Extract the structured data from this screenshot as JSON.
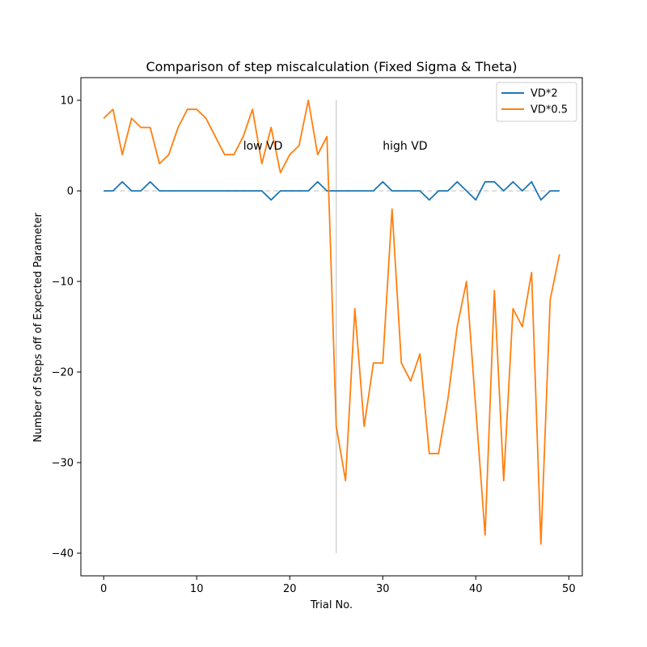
{
  "chart_data": {
    "type": "line",
    "title": "Comparison of step miscalculation (Fixed Sigma & Theta)",
    "xlabel": "Trial No.",
    "ylabel": "Number of Steps off of Expected Parameter",
    "xlim": [
      -2.45,
      51.45
    ],
    "ylim": [
      -42.5,
      12.5
    ],
    "xticks": [
      0,
      10,
      20,
      30,
      40,
      50
    ],
    "yticks": [
      10,
      0,
      -10,
      -20,
      -30,
      -40
    ],
    "ytick_labels": [
      "10",
      "0",
      "−10",
      "−20",
      "−30",
      "−40"
    ],
    "series": [
      {
        "name": "VD*2",
        "color": "#1f77b4",
        "x": [
          0,
          1,
          2,
          3,
          4,
          5,
          6,
          7,
          8,
          9,
          10,
          11,
          12,
          13,
          14,
          15,
          16,
          17,
          18,
          19,
          20,
          21,
          22,
          23,
          24,
          25,
          26,
          27,
          28,
          29,
          30,
          31,
          32,
          33,
          34,
          35,
          36,
          37,
          38,
          39,
          40,
          41,
          42,
          43,
          44,
          45,
          46,
          47,
          48,
          49
        ],
        "values": [
          0,
          0,
          1,
          0,
          0,
          1,
          0,
          0,
          0,
          0,
          0,
          0,
          0,
          0,
          0,
          0,
          0,
          0,
          -1,
          0,
          0,
          0,
          0,
          1,
          0,
          0,
          0,
          0,
          0,
          0,
          1,
          0,
          0,
          0,
          0,
          -1,
          0,
          0,
          1,
          0,
          -1,
          1,
          1,
          0,
          1,
          0,
          1,
          -1,
          0,
          0
        ]
      },
      {
        "name": "VD*0.5",
        "color": "#ff7f0e",
        "x": [
          0,
          1,
          2,
          3,
          4,
          5,
          6,
          7,
          8,
          9,
          10,
          11,
          12,
          13,
          14,
          15,
          16,
          17,
          18,
          19,
          20,
          21,
          22,
          23,
          24,
          25,
          26,
          27,
          28,
          29,
          30,
          31,
          32,
          33,
          34,
          35,
          36,
          37,
          38,
          39,
          40,
          41,
          42,
          43,
          44,
          45,
          46,
          47,
          48,
          49
        ],
        "values": [
          8,
          9,
          4,
          8,
          7,
          7,
          3,
          4,
          7,
          9,
          9,
          8,
          6,
          4,
          4,
          6,
          9,
          3,
          7,
          2,
          4,
          5,
          10,
          4,
          6,
          -26,
          -32,
          -13,
          -26,
          -19,
          -19,
          -2,
          -19,
          -21,
          -18,
          -29,
          -29,
          -23,
          -15,
          -10,
          -24,
          -38,
          -11,
          -32,
          -13,
          -15,
          -9,
          -39,
          -12,
          -7
        ]
      }
    ],
    "reference_line": {
      "y": 0,
      "color": "#d3d3d3",
      "style": "dashed"
    },
    "divider_line": {
      "x": 25,
      "y_range": [
        -40,
        10
      ],
      "color": "#d3d3d3"
    },
    "annotations": [
      {
        "text": "low VD",
        "x": 15,
        "y": 5
      },
      {
        "text": "high VD",
        "x": 30,
        "y": 5
      }
    ],
    "legend": {
      "position": "top-right",
      "entries": [
        "VD*2",
        "VD*0.5"
      ]
    }
  }
}
